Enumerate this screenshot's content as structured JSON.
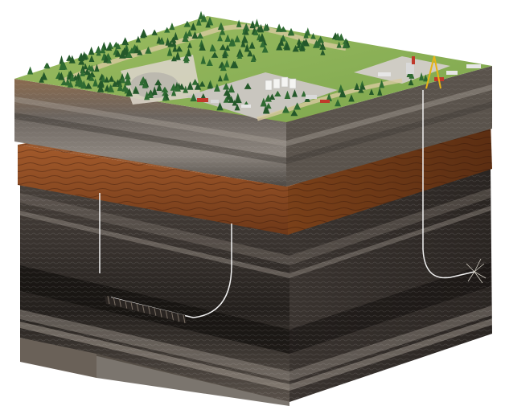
{
  "illustration": {
    "surface": {
      "forest_color": "#2f6b32",
      "grass_color": "#8fb35a",
      "pad_color": "#c9c6bf"
    },
    "strata": {
      "upper_band_colors": [
        "#8a6b4f",
        "#5f5a55",
        "#7b7570",
        "#4d4843"
      ],
      "sandstone_color": "#8a4a22",
      "deep_band_colors": [
        "#3c3631",
        "#5a534d",
        "#2c2724",
        "#6d655e",
        "#1f1b19"
      ]
    },
    "wells": {
      "wellbore_color": "#f2f2f2",
      "wellbores": [
        "vertical-well",
        "horizontal-well-left",
        "horizontal-well-right"
      ]
    }
  }
}
